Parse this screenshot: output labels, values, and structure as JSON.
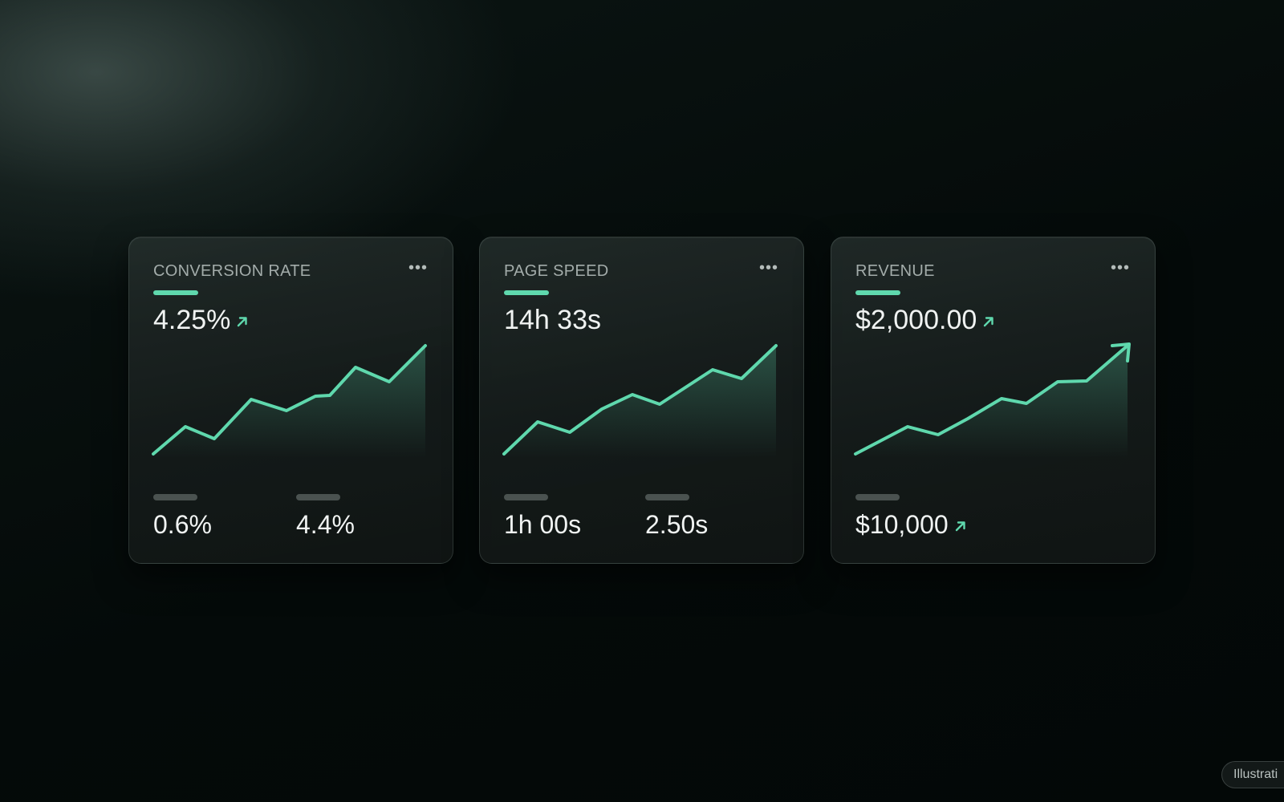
{
  "theme": {
    "accent": "#5fd8ad",
    "background": "#040a09",
    "card": "#1a2120",
    "text_primary": "#f0f3f2",
    "text_secondary": "#a3acaa"
  },
  "cards": [
    {
      "title": "CONVERSION RATE",
      "menu_icon": "more-horizontal-icon",
      "value": "4.25%",
      "trend": "up",
      "trend_icon": "arrow-up-right-icon",
      "metrics": [
        {
          "value": "0.6%"
        },
        {
          "value": "4.4%"
        }
      ]
    },
    {
      "title": "PAGE SPEED",
      "menu_icon": "more-horizontal-icon",
      "value": "14h 33s",
      "metrics": [
        {
          "value": "1h 00s"
        },
        {
          "value": "2.50s"
        }
      ]
    },
    {
      "title": "REVENUE",
      "menu_icon": "more-horizontal-icon",
      "value": "$2,000.00",
      "trend": "up",
      "trend_icon": "arrow-up-right-icon",
      "metrics": [
        {
          "value": "$10,000",
          "trend": "up",
          "trend_icon": "arrow-up-right-icon"
        }
      ]
    }
  ],
  "badge": {
    "label": "Illustrati"
  }
}
